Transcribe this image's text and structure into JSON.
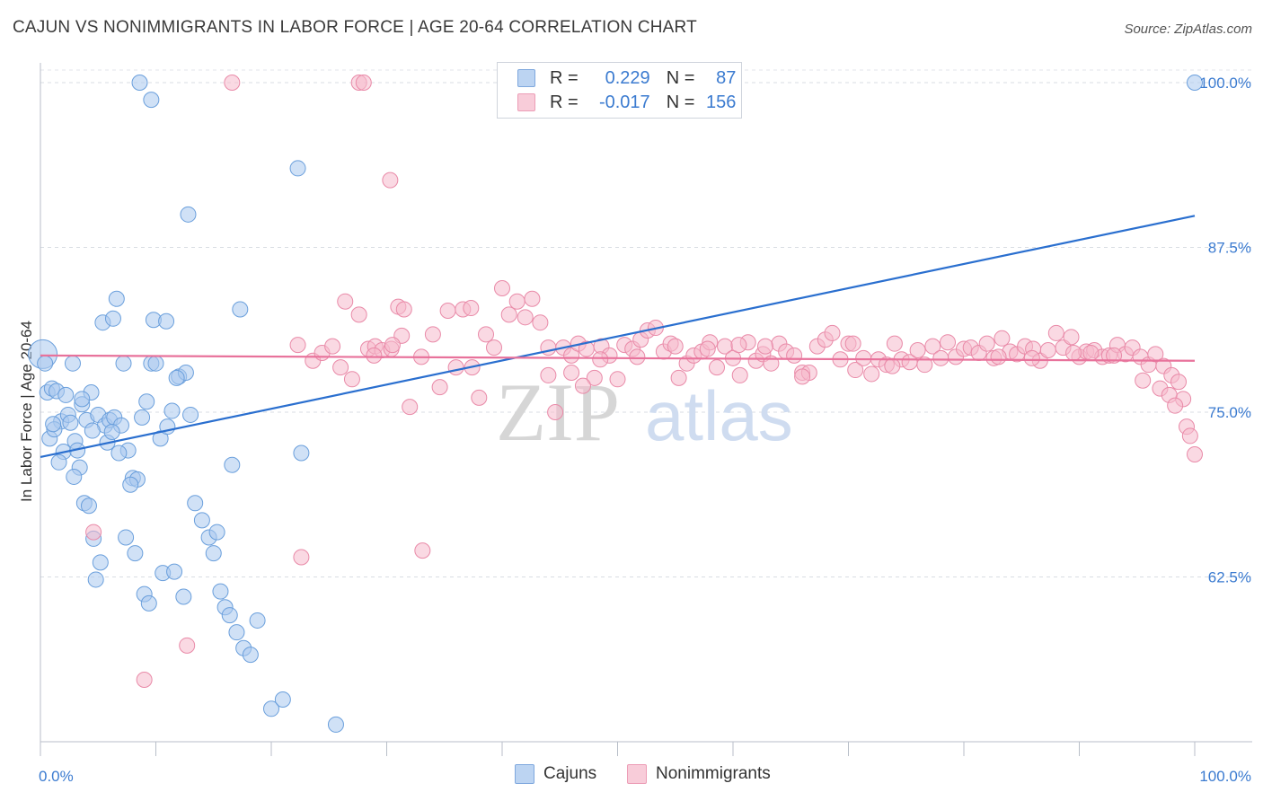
{
  "title": "CAJUN VS NONIMMIGRANTS IN LABOR FORCE | AGE 20-64 CORRELATION CHART",
  "source": "Source: ZipAtlas.com",
  "watermark": {
    "zip": "ZIP",
    "atlas": "atlas"
  },
  "legend": {
    "rows": [
      {
        "r_label": "R =",
        "r_value": "0.229",
        "n_label": "N =",
        "n_value": "87",
        "color": "#a9c8ee"
      },
      {
        "r_label": "R =",
        "r_value": "-0.017",
        "n_label": "N =",
        "n_value": "156",
        "color": "#f6b9cc"
      }
    ]
  },
  "bottom_legend": [
    {
      "label": "Cajuns",
      "color": "#a9c8ee"
    },
    {
      "label": "Nonimmigrants",
      "color": "#f6b9cc"
    }
  ],
  "chart_data": {
    "type": "scatter",
    "title": "CAJUN VS NONIMMIGRANTS IN LABOR FORCE | AGE 20-64 CORRELATION CHART",
    "xlabel": "",
    "ylabel": "In Labor Force | Age 20-64",
    "xlim": [
      0,
      100
    ],
    "ylim": [
      50,
      101.5
    ],
    "x_tick_labels": [
      {
        "x": 0,
        "label": "0.0%"
      },
      {
        "x": 100,
        "label": "100.0%"
      }
    ],
    "y_ticks": [
      {
        "y": 62.5,
        "label": "62.5%"
      },
      {
        "y": 75.0,
        "label": "75.0%"
      },
      {
        "y": 87.5,
        "label": "87.5%"
      },
      {
        "y": 100.0,
        "label": "100.0%"
      }
    ],
    "grid": true,
    "legend_position": "top-center",
    "series": [
      {
        "name": "Cajuns",
        "color": "#a9c8ee",
        "stroke": "#6a9fdc",
        "trend": {
          "x": [
            0,
            100
          ],
          "y": [
            71.6,
            89.9
          ],
          "color": "#2a6fcf"
        },
        "points": [
          [
            0.2,
            79.4
          ],
          [
            0.4,
            78.7
          ],
          [
            0.6,
            76.5
          ],
          [
            1.0,
            76.8
          ],
          [
            1.4,
            76.6
          ],
          [
            0.8,
            73.0
          ],
          [
            1.8,
            74.3
          ],
          [
            1.2,
            73.7
          ],
          [
            2.2,
            76.3
          ],
          [
            2.8,
            78.7
          ],
          [
            2.0,
            72.0
          ],
          [
            3.0,
            72.8
          ],
          [
            3.6,
            75.6
          ],
          [
            4.0,
            74.4
          ],
          [
            4.4,
            76.5
          ],
          [
            5.0,
            74.8
          ],
          [
            5.6,
            74.0
          ],
          [
            3.4,
            70.8
          ],
          [
            3.8,
            68.1
          ],
          [
            4.2,
            67.9
          ],
          [
            4.6,
            65.4
          ],
          [
            5.2,
            63.6
          ],
          [
            4.8,
            62.3
          ],
          [
            6.0,
            74.4
          ],
          [
            6.4,
            74.6
          ],
          [
            7.0,
            74.0
          ],
          [
            7.2,
            78.7
          ],
          [
            7.6,
            72.1
          ],
          [
            8.0,
            70.0
          ],
          [
            8.4,
            69.9
          ],
          [
            8.8,
            74.6
          ],
          [
            9.2,
            75.8
          ],
          [
            9.6,
            78.7
          ],
          [
            10.0,
            78.7
          ],
          [
            10.4,
            73.0
          ],
          [
            11.0,
            73.9
          ],
          [
            11.4,
            75.1
          ],
          [
            12.0,
            77.7
          ],
          [
            12.6,
            78.0
          ],
          [
            13.0,
            74.8
          ],
          [
            13.4,
            68.1
          ],
          [
            14.0,
            66.8
          ],
          [
            14.6,
            65.5
          ],
          [
            15.0,
            64.3
          ],
          [
            15.6,
            61.4
          ],
          [
            16.0,
            60.2
          ],
          [
            16.4,
            59.6
          ],
          [
            17.0,
            58.3
          ],
          [
            17.6,
            57.1
          ],
          [
            18.2,
            56.6
          ],
          [
            18.8,
            59.2
          ],
          [
            20.0,
            52.5
          ],
          [
            21.0,
            53.2
          ],
          [
            2.4,
            74.8
          ],
          [
            2.6,
            74.2
          ],
          [
            3.2,
            72.1
          ],
          [
            5.8,
            72.7
          ],
          [
            6.2,
            73.5
          ],
          [
            6.8,
            71.9
          ],
          [
            7.4,
            65.5
          ],
          [
            8.2,
            64.3
          ],
          [
            9.0,
            61.2
          ],
          [
            9.4,
            60.5
          ],
          [
            10.6,
            62.8
          ],
          [
            11.6,
            62.9
          ],
          [
            12.4,
            61.0
          ],
          [
            5.4,
            81.8
          ],
          [
            6.6,
            83.6
          ],
          [
            9.8,
            82.0
          ],
          [
            8.6,
            100.0
          ],
          [
            9.6,
            98.7
          ],
          [
            12.8,
            90.0
          ],
          [
            22.3,
            93.5
          ],
          [
            17.3,
            82.8
          ],
          [
            22.6,
            71.9
          ],
          [
            25.6,
            51.3
          ],
          [
            100.0,
            100.0
          ],
          [
            3.6,
            76.0
          ],
          [
            4.5,
            73.6
          ],
          [
            1.6,
            71.2
          ],
          [
            2.9,
            70.1
          ],
          [
            6.3,
            82.1
          ],
          [
            1.1,
            74.1
          ],
          [
            7.8,
            69.5
          ],
          [
            10.9,
            81.9
          ],
          [
            11.8,
            77.6
          ],
          [
            15.3,
            65.9
          ],
          [
            16.6,
            71.0
          ]
        ]
      },
      {
        "name": "Nonimmigrants",
        "color": "#f6b9cc",
        "stroke": "#e98aa8",
        "trend": {
          "x": [
            0,
            100
          ],
          "y": [
            79.3,
            78.9
          ],
          "color": "#e8729b"
        },
        "points": [
          [
            16.6,
            100.0
          ],
          [
            27.6,
            100.0
          ],
          [
            28.0,
            100.0
          ],
          [
            30.3,
            92.6
          ],
          [
            22.3,
            80.1
          ],
          [
            23.6,
            78.9
          ],
          [
            24.4,
            79.5
          ],
          [
            25.3,
            80.0
          ],
          [
            26.0,
            78.4
          ],
          [
            26.4,
            83.4
          ],
          [
            27.0,
            77.5
          ],
          [
            27.6,
            82.4
          ],
          [
            28.4,
            79.8
          ],
          [
            29.0,
            80.0
          ],
          [
            29.6,
            79.7
          ],
          [
            30.4,
            79.8
          ],
          [
            31.3,
            80.8
          ],
          [
            32.0,
            75.4
          ],
          [
            33.0,
            79.2
          ],
          [
            34.0,
            80.9
          ],
          [
            34.6,
            76.9
          ],
          [
            35.3,
            82.7
          ],
          [
            36.0,
            78.4
          ],
          [
            36.6,
            82.8
          ],
          [
            37.3,
            82.9
          ],
          [
            38.0,
            76.1
          ],
          [
            38.6,
            80.9
          ],
          [
            39.3,
            79.9
          ],
          [
            40.0,
            84.4
          ],
          [
            40.6,
            82.4
          ],
          [
            41.3,
            83.4
          ],
          [
            42.0,
            82.2
          ],
          [
            42.6,
            83.6
          ],
          [
            43.3,
            81.8
          ],
          [
            44.0,
            79.9
          ],
          [
            44.6,
            75.0
          ],
          [
            45.3,
            79.9
          ],
          [
            46.0,
            79.3
          ],
          [
            46.6,
            80.2
          ],
          [
            47.3,
            79.8
          ],
          [
            48.0,
            77.6
          ],
          [
            48.6,
            80.0
          ],
          [
            49.3,
            79.3
          ],
          [
            50.0,
            77.5
          ],
          [
            50.6,
            80.1
          ],
          [
            51.3,
            79.8
          ],
          [
            52.0,
            80.5
          ],
          [
            52.6,
            81.2
          ],
          [
            53.3,
            81.4
          ],
          [
            54.0,
            79.6
          ],
          [
            54.6,
            80.2
          ],
          [
            55.3,
            77.6
          ],
          [
            56.0,
            78.7
          ],
          [
            56.6,
            79.3
          ],
          [
            57.3,
            79.6
          ],
          [
            58.0,
            80.3
          ],
          [
            58.6,
            78.4
          ],
          [
            59.3,
            80.0
          ],
          [
            60.0,
            79.1
          ],
          [
            60.6,
            77.8
          ],
          [
            61.3,
            80.3
          ],
          [
            62.0,
            78.9
          ],
          [
            62.6,
            79.4
          ],
          [
            63.3,
            78.7
          ],
          [
            64.0,
            80.2
          ],
          [
            64.6,
            79.6
          ],
          [
            65.3,
            79.3
          ],
          [
            66.0,
            78.0
          ],
          [
            66.6,
            78.0
          ],
          [
            67.3,
            80.0
          ],
          [
            68.0,
            80.5
          ],
          [
            68.6,
            81.0
          ],
          [
            69.3,
            79.0
          ],
          [
            70.0,
            80.2
          ],
          [
            70.6,
            78.2
          ],
          [
            71.3,
            79.1
          ],
          [
            72.0,
            77.9
          ],
          [
            72.6,
            79.0
          ],
          [
            73.3,
            78.6
          ],
          [
            74.0,
            80.2
          ],
          [
            74.6,
            79.0
          ],
          [
            75.3,
            78.8
          ],
          [
            76.0,
            79.7
          ],
          [
            76.6,
            78.6
          ],
          [
            77.3,
            80.0
          ],
          [
            78.0,
            79.1
          ],
          [
            78.6,
            80.3
          ],
          [
            79.3,
            79.2
          ],
          [
            80.0,
            79.8
          ],
          [
            80.6,
            79.9
          ],
          [
            81.3,
            79.5
          ],
          [
            82.0,
            80.2
          ],
          [
            82.6,
            79.1
          ],
          [
            83.3,
            80.6
          ],
          [
            84.0,
            79.6
          ],
          [
            84.6,
            79.4
          ],
          [
            85.3,
            80.0
          ],
          [
            86.0,
            79.8
          ],
          [
            86.6,
            78.9
          ],
          [
            87.3,
            79.7
          ],
          [
            88.0,
            81.0
          ],
          [
            88.6,
            79.9
          ],
          [
            89.3,
            80.7
          ],
          [
            90.0,
            79.2
          ],
          [
            90.6,
            79.6
          ],
          [
            91.3,
            79.7
          ],
          [
            92.0,
            79.2
          ],
          [
            92.6,
            79.3
          ],
          [
            93.3,
            80.1
          ],
          [
            94.0,
            79.4
          ],
          [
            94.6,
            79.9
          ],
          [
            95.3,
            79.2
          ],
          [
            96.0,
            78.6
          ],
          [
            96.6,
            79.4
          ],
          [
            97.3,
            78.5
          ],
          [
            98.0,
            77.8
          ],
          [
            98.6,
            77.3
          ],
          [
            99.0,
            76.0
          ],
          [
            99.3,
            73.9
          ],
          [
            99.6,
            73.2
          ],
          [
            100.0,
            71.8
          ],
          [
            47.0,
            77.0
          ],
          [
            48.5,
            79.0
          ],
          [
            95.5,
            77.4
          ],
          [
            97.0,
            76.8
          ],
          [
            97.8,
            76.3
          ],
          [
            98.3,
            75.5
          ],
          [
            46.0,
            78.0
          ],
          [
            44.0,
            77.8
          ],
          [
            31.0,
            83.0
          ],
          [
            31.5,
            82.8
          ],
          [
            30.5,
            80.1
          ],
          [
            62.8,
            80.0
          ],
          [
            37.4,
            78.4
          ],
          [
            55.0,
            80.0
          ],
          [
            60.5,
            80.1
          ],
          [
            70.4,
            80.2
          ],
          [
            73.8,
            78.5
          ],
          [
            89.5,
            79.5
          ],
          [
            93.0,
            79.3
          ],
          [
            12.7,
            57.3
          ],
          [
            9.0,
            54.7
          ],
          [
            22.6,
            64.0
          ],
          [
            33.1,
            64.5
          ],
          [
            4.6,
            65.9
          ],
          [
            28.9,
            79.3
          ],
          [
            51.7,
            79.2
          ],
          [
            57.8,
            79.8
          ],
          [
            66.0,
            77.7
          ],
          [
            83.0,
            79.2
          ],
          [
            85.9,
            79.1
          ],
          [
            91.0,
            79.5
          ]
        ]
      }
    ]
  }
}
